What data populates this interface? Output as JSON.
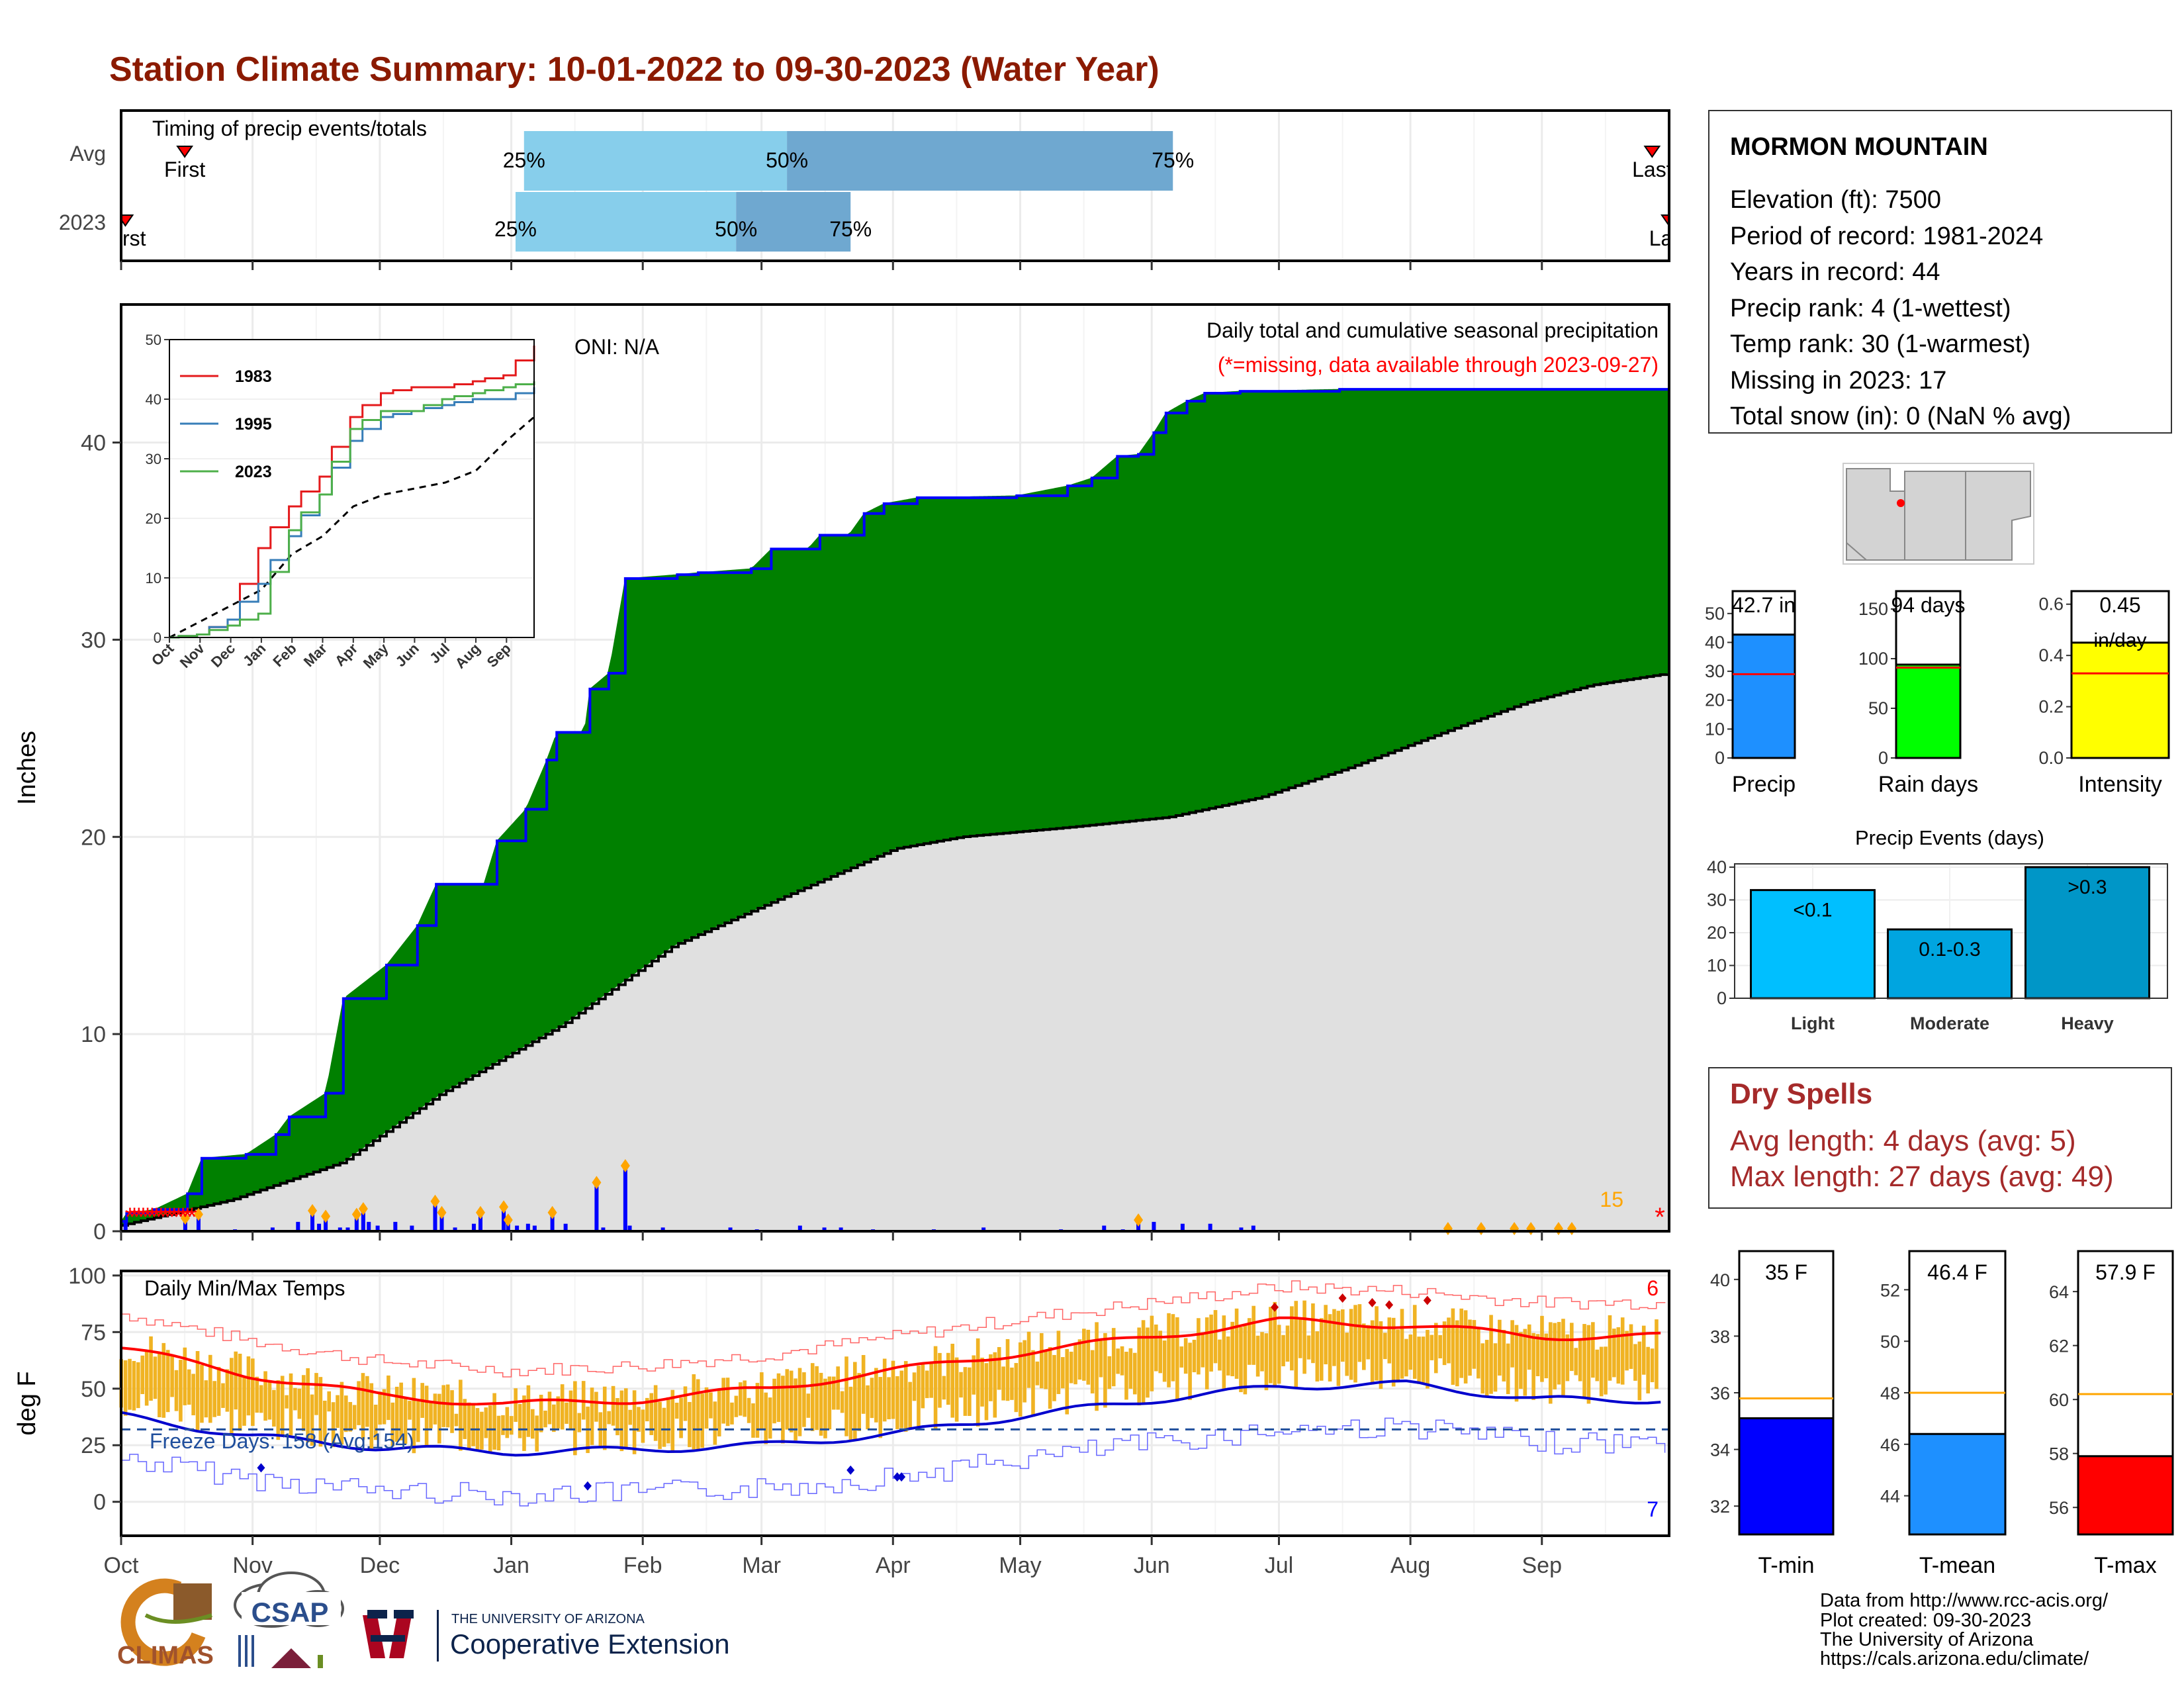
{
  "title": "Station Climate Summary: 10-01-2022 to 09-30-2023 (Water Year)",
  "months": [
    "Oct",
    "Nov",
    "Dec",
    "Jan",
    "Feb",
    "Mar",
    "Apr",
    "May",
    "Jun",
    "Jul",
    "Aug",
    "Sep"
  ],
  "timing": {
    "label": "Timing of precip events/totals",
    "rows": [
      {
        "name": "Avg",
        "first": "First",
        "last": "Last",
        "p25_day": 95,
        "p50_day": 157,
        "p75_day": 248,
        "first_day": 15,
        "last_day": 361,
        "labels": [
          "25%",
          "50%",
          "75%"
        ]
      },
      {
        "name": "2023",
        "first": "First",
        "last": "Last",
        "p25_day": 93,
        "p50_day": 145,
        "p75_day": 172,
        "first_day": 1,
        "last_day": 365,
        "labels": [
          "25%",
          "50%",
          "75%"
        ]
      }
    ]
  },
  "precip": {
    "ylabel": "Inches",
    "yticks": [
      "0",
      "10",
      "20",
      "30",
      "40"
    ],
    "oni": "ONI: N/A",
    "legend_title": "Daily total and cumulative seasonal precipitation",
    "missing_note": "(*=missing, data available through 2023-09-27)",
    "missing_count": "15",
    "colors": {
      "above": "#008000",
      "below": "#8B4513",
      "avg": "#e0e0e0",
      "line": "#0000ff",
      "bars": "#0000ff",
      "missing": "#ff0000",
      "marker": "#ffa500"
    }
  },
  "inset": {
    "yticks": [
      "0",
      "10",
      "20",
      "30",
      "40",
      "50"
    ],
    "xticks": [
      "Oct",
      "Nov",
      "Dec",
      "Jan",
      "Feb",
      "Mar",
      "Apr",
      "May",
      "Jun",
      "Jul",
      "Aug",
      "Sep"
    ],
    "series": [
      {
        "name": "1983",
        "color": "#e41a1c"
      },
      {
        "name": "1995",
        "color": "#377eb8"
      },
      {
        "name": "2023",
        "color": "#4daf4a"
      }
    ]
  },
  "temps": {
    "ylabel": "deg F",
    "yticks": [
      "0",
      "25",
      "50",
      "75",
      "100"
    ],
    "label": "Daily Min/Max Temps",
    "freeze": "Freeze Days: 158 (Avg:154)",
    "max_count": "6",
    "min_count": "7"
  },
  "station": {
    "name": "MORMON MOUNTAIN",
    "lines": [
      "Elevation (ft): 7500",
      "Period of record: 1981-2024",
      "Years in record: 44",
      "Precip rank: 4 (1-wettest)",
      "Temp rank: 30 (1-warmest)",
      "Missing in 2023: 17",
      "Total snow (in): 0 (NaN % avg)"
    ]
  },
  "mini_precip": [
    {
      "label": "Precip",
      "value_label": "42.7 in",
      "value": 42.7,
      "avg": 29,
      "ymax": 55,
      "yticks": [
        "0",
        "10",
        "20",
        "30",
        "40",
        "50"
      ],
      "tickvals": [
        0,
        10,
        20,
        30,
        40,
        50
      ],
      "color": "#1e90ff"
    },
    {
      "label": "Rain days",
      "value_label": "94 days",
      "value": 94,
      "avg": 91,
      "ymax": 160,
      "yticks": [
        "0",
        "50",
        "100",
        "150"
      ],
      "tickvals": [
        0,
        50,
        100,
        150
      ],
      "color": "#00ff00"
    },
    {
      "label": "Intensity",
      "value_label": "0.45",
      "unit": "in/day",
      "value": 0.45,
      "avg": 0.33,
      "ymax": 0.62,
      "yticks": [
        "0.0",
        "0.2",
        "0.4",
        "0.6"
      ],
      "tickvals": [
        0,
        0.2,
        0.4,
        0.6
      ],
      "color": "#ffff00"
    }
  ],
  "precip_events": {
    "title": "Precip Events (days)",
    "yticks": [
      "0",
      "10",
      "20",
      "30",
      "40"
    ],
    "categories": [
      "Light",
      "Moderate",
      "Heavy"
    ],
    "values": [
      33,
      21,
      40
    ],
    "bar_labels": [
      "<0.1",
      "0.1-0.3",
      ">0.3"
    ],
    "colors": [
      "#00bfff",
      "#00a5e0",
      "#0096c7"
    ]
  },
  "dry_spells": {
    "title": "Dry Spells",
    "avg": "Avg length: 4 days (avg: 5)",
    "max": "Max length: 27 days (avg: 49)"
  },
  "mini_temp": [
    {
      "label": "T-min",
      "value_label": "35 F",
      "value": 35.1,
      "avg": 35.8,
      "ymin": 31,
      "ymax": 41,
      "yticks": [
        "32",
        "34",
        "36",
        "38",
        "40"
      ],
      "tickvals": [
        32,
        34,
        36,
        38,
        40
      ],
      "color": "#0000ff"
    },
    {
      "label": "T-mean",
      "value_label": "46.4 F",
      "value": 46.4,
      "avg": 48.0,
      "ymin": 42.5,
      "ymax": 53.5,
      "yticks": [
        "44",
        "46",
        "48",
        "50",
        "52"
      ],
      "tickvals": [
        44,
        46,
        48,
        50,
        52
      ],
      "color": "#1e90ff"
    },
    {
      "label": "T-max",
      "value_label": "57.9 F",
      "value": 57.9,
      "avg": 60.2,
      "ymin": 55,
      "ymax": 65.5,
      "yticks": [
        "56",
        "58",
        "60",
        "62",
        "64"
      ],
      "tickvals": [
        56,
        58,
        60,
        62,
        64
      ],
      "color": "#ff0000"
    }
  ],
  "footer": {
    "lines": [
      "Data from http://www.rcc-acis.org/",
      "Plot created: 09-30-2023",
      "The University of Arizona",
      "https://cals.arizona.edu/climate/"
    ],
    "logo_climas": "CLIMAS",
    "logo_csap": "CSAP",
    "ua_small": "THE UNIVERSITY OF ARIZONA",
    "ua_big": "Cooperative Extension"
  },
  "chart_data": [
    {
      "type": "area",
      "title": "Daily total and cumulative seasonal precipitation",
      "ylabel": "Inches",
      "ylim": [
        0,
        47
      ],
      "x_unit": "day of water year",
      "cumulative_2023": [
        [
          0,
          0.5
        ],
        [
          5,
          0.9
        ],
        [
          30,
          1.1
        ],
        [
          60,
          1.9
        ],
        [
          73,
          3.7
        ],
        [
          113,
          3.9
        ],
        [
          140,
          4.9
        ],
        [
          152,
          5.8
        ],
        [
          185,
          7.0
        ],
        [
          201,
          11.8
        ],
        [
          240,
          13.5
        ],
        [
          268,
          15.5
        ],
        [
          285,
          17.6
        ],
        [
          328,
          17.6
        ],
        [
          340,
          19.8
        ],
        [
          366,
          21.4
        ],
        [
          385,
          23.9
        ],
        [
          394,
          25.3
        ],
        [
          419,
          25.3
        ],
        [
          424,
          27.5
        ],
        [
          441,
          28.3
        ],
        [
          456,
          33.1
        ],
        [
          503,
          33.3
        ],
        [
          522,
          33.4
        ],
        [
          570,
          33.6
        ],
        [
          588,
          34.6
        ],
        [
          621,
          34.6
        ],
        [
          632,
          35.3
        ],
        [
          658,
          35.3
        ],
        [
          672,
          36.4
        ],
        [
          690,
          36.9
        ],
        [
          720,
          37.2
        ],
        [
          810,
          37.3
        ],
        [
          856,
          37.8
        ],
        [
          878,
          38.2
        ],
        [
          901,
          39.3
        ],
        [
          920,
          39.4
        ],
        [
          934,
          40.5
        ],
        [
          945,
          41.5
        ],
        [
          964,
          42.1
        ],
        [
          980,
          42.5
        ],
        [
          1012,
          42.6
        ],
        [
          1102,
          42.7
        ]
      ],
      "cumulative_avg": [
        [
          0,
          0.3
        ],
        [
          100,
          1.6
        ],
        [
          200,
          3.5
        ],
        [
          290,
          7.0
        ],
        [
          400,
          10.5
        ],
        [
          500,
          14.5
        ],
        [
          601,
          17.0
        ],
        [
          700,
          19.4
        ],
        [
          760,
          20.0
        ],
        [
          860,
          20.5
        ],
        [
          947,
          21.0
        ],
        [
          1030,
          22.0
        ],
        [
          1110,
          23.5
        ],
        [
          1210,
          25.6
        ],
        [
          1270,
          26.8
        ],
        [
          1330,
          27.7
        ],
        [
          1400,
          28.3
        ]
      ],
      "daily_bars": [
        [
          4,
          0.5
        ],
        [
          58,
          0.7
        ],
        [
          70,
          0.9
        ],
        [
          103,
          0.1
        ],
        [
          137,
          0.2
        ],
        [
          160,
          0.5
        ],
        [
          173,
          1.1
        ],
        [
          179,
          0.4
        ],
        [
          185,
          0.8
        ],
        [
          198,
          0.2
        ],
        [
          205,
          0.2
        ],
        [
          213,
          0.9
        ],
        [
          219,
          1.2
        ],
        [
          224,
          0.5
        ],
        [
          232,
          0.3
        ],
        [
          248,
          0.5
        ],
        [
          263,
          0.3
        ],
        [
          284,
          1.6
        ],
        [
          290,
          1.0
        ],
        [
          302,
          0.2
        ],
        [
          319,
          0.4
        ],
        [
          325,
          1.0
        ],
        [
          346,
          1.3
        ],
        [
          350,
          0.6
        ],
        [
          358,
          0.3
        ],
        [
          368,
          0.4
        ],
        [
          374,
          0.3
        ],
        [
          390,
          1.0
        ],
        [
          402,
          0.4
        ],
        [
          430,
          2.6
        ],
        [
          436,
          0.2
        ],
        [
          456,
          3.5
        ],
        [
          460,
          0.3
        ],
        [
          490,
          0.2
        ],
        [
          551,
          0.2
        ],
        [
          575,
          0.1
        ],
        [
          614,
          0.3
        ],
        [
          636,
          0.2
        ],
        [
          651,
          0.2
        ],
        [
          680,
          0.1
        ],
        [
          735,
          0.1
        ],
        [
          780,
          0.2
        ],
        [
          850,
          0.1
        ],
        [
          889,
          0.3
        ],
        [
          906,
          0.1
        ],
        [
          920,
          0.6
        ],
        [
          934,
          0.5
        ],
        [
          960,
          0.4
        ],
        [
          985,
          0.4
        ],
        [
          1013,
          0.2
        ],
        [
          1024,
          0.3
        ]
      ],
      "missing_count": 15
    },
    {
      "type": "line",
      "title": "",
      "x": [
        "Oct",
        "Nov",
        "Dec",
        "Jan",
        "Feb",
        "Mar",
        "Apr",
        "May",
        "Jun",
        "Jul",
        "Aug",
        "Sep"
      ],
      "ylim": [
        0,
        50
      ],
      "series": [
        {
          "name": "1983",
          "values": [
            0.5,
            3,
            15,
            22,
            27,
            37,
            41,
            42,
            42,
            43,
            44,
            49
          ]
        },
        {
          "name": "1995",
          "values": [
            0.5,
            3,
            9,
            17,
            24,
            33,
            37,
            38,
            39,
            40,
            40,
            42
          ]
        },
        {
          "name": "2023",
          "values": [
            0.5,
            2,
            4,
            18,
            24,
            35,
            38,
            38,
            40,
            41,
            42,
            43
          ]
        }
      ]
    },
    {
      "type": "bar",
      "title": "Precip Events (days)",
      "categories": [
        "Light",
        "Moderate",
        "Heavy"
      ],
      "values": [
        33,
        21,
        40
      ],
      "ylim": [
        0,
        41
      ]
    },
    {
      "type": "bar",
      "title": "",
      "categories": [
        "Precip",
        "Rain days",
        "Intensity"
      ],
      "values": [
        42.7,
        94,
        0.45
      ]
    },
    {
      "type": "bar",
      "title": "",
      "categories": [
        "T-min",
        "T-mean",
        "T-max"
      ],
      "values": [
        35.1,
        46.4,
        57.9
      ]
    },
    {
      "type": "line",
      "title": "Daily Min/Max Temps",
      "ylabel": "deg F",
      "ylim": [
        -15,
        102
      ],
      "x": [
        "Oct",
        "Nov",
        "Dec",
        "Jan",
        "Feb",
        "Mar",
        "Apr",
        "May",
        "Jun",
        "Jul",
        "Aug",
        "Sep"
      ],
      "series": [
        {
          "name": "",
          "values": [
            68,
            56,
            47,
            43,
            45,
            50,
            58,
            66,
            73,
            80,
            78,
            73
          ]
        },
        {
          "name": "",
          "values": [
            38,
            29,
            24,
            22,
            23,
            25,
            30,
            38,
            45,
            51,
            52,
            45
          ]
        }
      ]
    }
  ]
}
